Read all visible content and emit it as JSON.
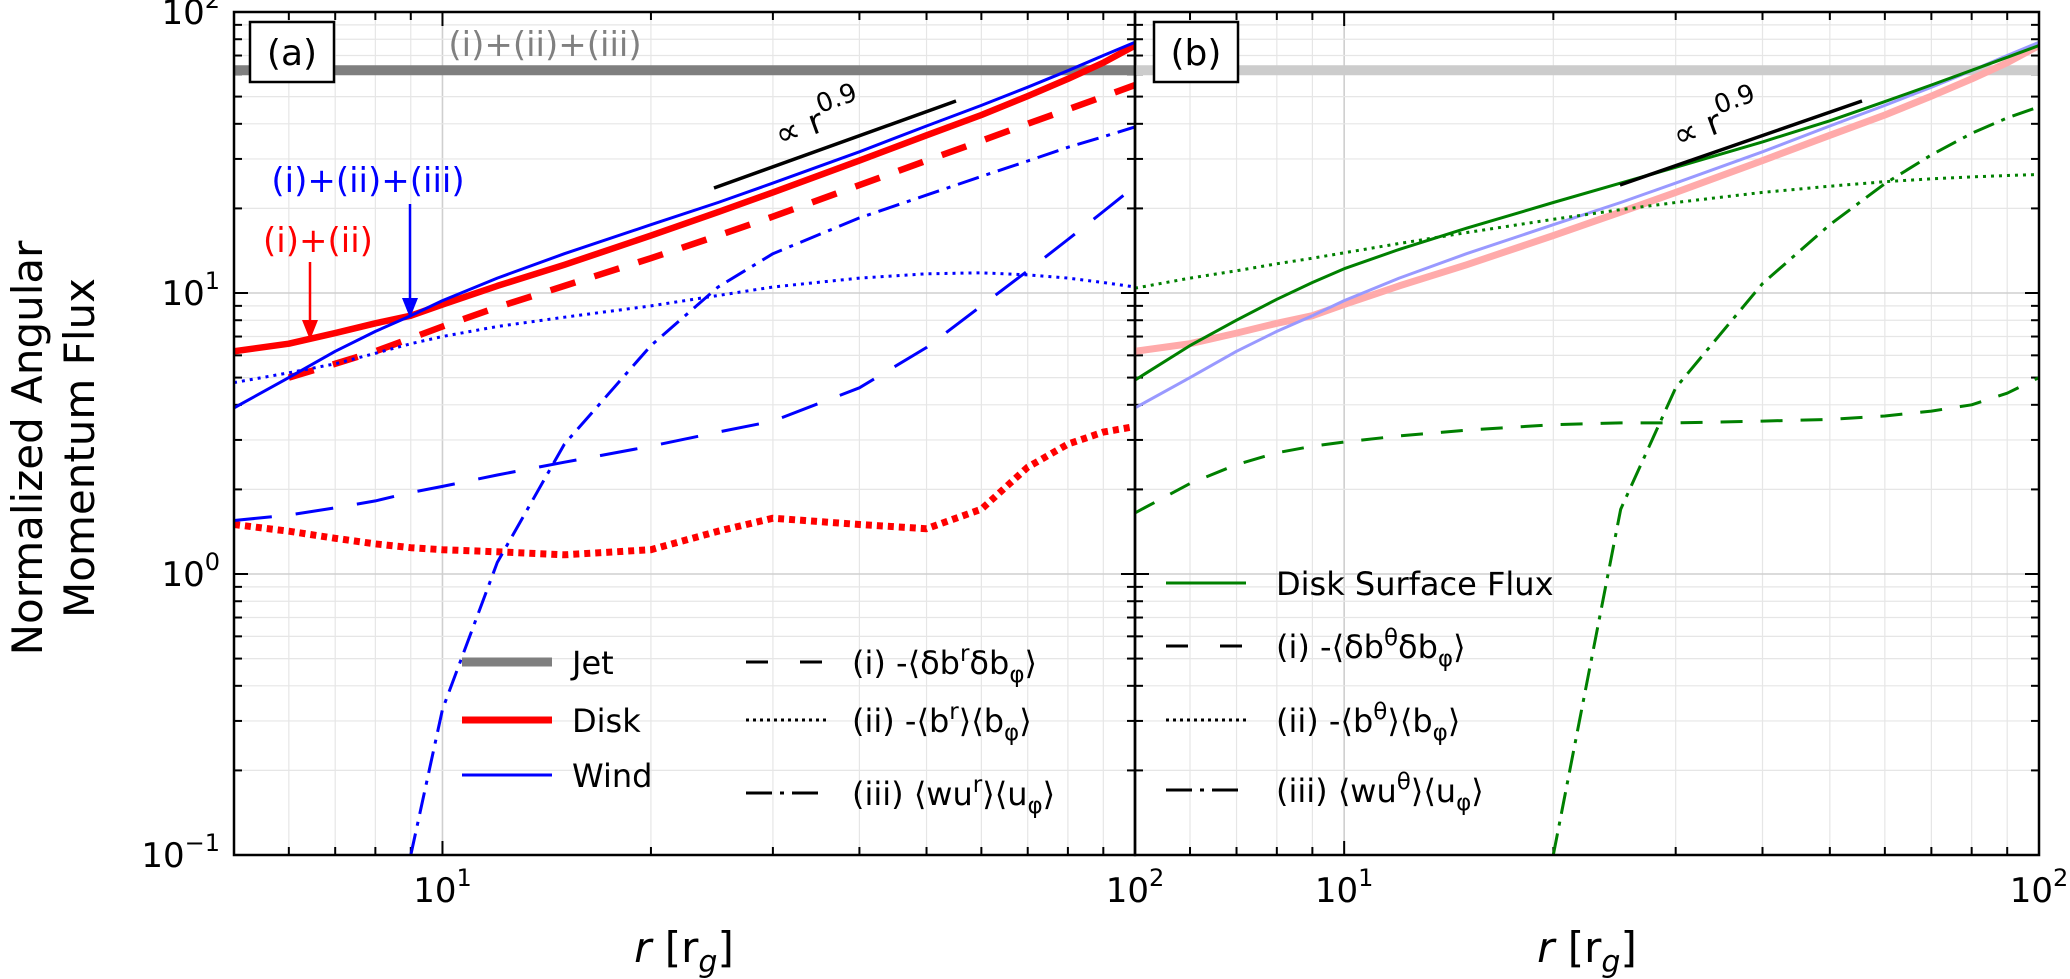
{
  "figure": {
    "ylabel_line1": "Normalized Angular",
    "ylabel_line2": "Momentum Flux",
    "xlabel_var": "r",
    "xlabel_unit": "[r",
    "xlabel_sub": "g",
    "xlabel_close": "]"
  },
  "chart_data": [
    {
      "type": "line",
      "panel_label": "(a)",
      "xscale": "log",
      "yscale": "log",
      "xlim": [
        5,
        100
      ],
      "ylim": [
        0.1,
        100
      ],
      "x_major_ticks": [
        {
          "base": "10",
          "exp": "1"
        },
        {
          "base": "10",
          "exp": "2"
        }
      ],
      "y_major_ticks": [
        {
          "base": "10",
          "exp": "−1"
        },
        {
          "base": "10",
          "exp": "0"
        },
        {
          "base": "10",
          "exp": "1"
        },
        {
          "base": "10",
          "exp": "2"
        }
      ],
      "grid": true,
      "colors": {
        "jet": "#7f7f7f",
        "disk": "#ff0000",
        "wind": "#0000ff"
      },
      "x": [
        5,
        6,
        7,
        8,
        9,
        10,
        12,
        15,
        20,
        25,
        30,
        40,
        50,
        60,
        70,
        80,
        90,
        100
      ],
      "series": [
        {
          "name": "Jet (i)+(ii)+(iii)",
          "component": "Jet",
          "style": "solid",
          "y": [
            62,
            62,
            62,
            62,
            62,
            62,
            62,
            62,
            62,
            62,
            62,
            62,
            62,
            62,
            62,
            62,
            62,
            62
          ]
        },
        {
          "name": "Disk (i)+(ii)",
          "component": "Disk",
          "style": "solid",
          "y": [
            6.2,
            6.6,
            7.2,
            7.8,
            8.3,
            9.1,
            10.6,
            12.6,
            16.0,
            19.4,
            22.8,
            29.6,
            36.4,
            43.0,
            50.2,
            57.8,
            66.0,
            76.0
          ]
        },
        {
          "name": "Disk (i)",
          "component": "Disk",
          "style": "dashed",
          "y": [
            null,
            5.0,
            5.6,
            6.2,
            6.9,
            7.6,
            8.9,
            10.6,
            13.3,
            16.0,
            18.7,
            24.2,
            29.6,
            34.8,
            40.0,
            45.0,
            50.0,
            55.0
          ]
        },
        {
          "name": "Disk (ii)",
          "component": "Disk",
          "style": "dotted",
          "y": [
            1.5,
            1.42,
            1.34,
            1.28,
            1.24,
            1.22,
            1.2,
            1.17,
            1.22,
            1.42,
            1.58,
            1.5,
            1.45,
            1.7,
            2.4,
            2.9,
            3.2,
            3.35
          ]
        },
        {
          "name": "Wind (i)+(ii)+(iii)",
          "component": "Wind",
          "style": "solid",
          "y": [
            3.9,
            5.0,
            6.2,
            7.3,
            8.3,
            9.4,
            11.3,
            13.8,
            17.5,
            21.0,
            24.6,
            31.8,
            39.3,
            46.5,
            54.0,
            61.8,
            70.0,
            78.0
          ]
        },
        {
          "name": "Wind (i)",
          "component": "Wind",
          "style": "dashed",
          "y": [
            1.55,
            1.62,
            1.72,
            1.82,
            1.95,
            2.05,
            2.25,
            2.5,
            2.85,
            3.2,
            3.5,
            4.6,
            6.4,
            9.0,
            12.0,
            15.5,
            19.5,
            24.0
          ]
        },
        {
          "name": "Wind (ii)",
          "component": "Wind",
          "style": "dotted",
          "y": [
            4.8,
            5.2,
            5.6,
            6.1,
            6.6,
            7.0,
            7.6,
            8.2,
            9.0,
            9.8,
            10.5,
            11.3,
            11.7,
            11.8,
            11.6,
            11.3,
            10.9,
            10.5
          ]
        },
        {
          "name": "Wind (iii)",
          "component": "Wind",
          "style": "dashdot",
          "y": [
            null,
            null,
            null,
            null,
            0.1,
            0.33,
            1.1,
            2.9,
            6.5,
            10.5,
            13.8,
            18.5,
            22.3,
            26.0,
            29.5,
            33.0,
            36.0,
            39.0
          ]
        }
      ],
      "legend_items": [
        {
          "label": "Jet",
          "style": "solid",
          "color": "#7f7f7f"
        },
        {
          "label": "Disk",
          "style": "solid",
          "color": "#ff0000"
        },
        {
          "label": "Wind",
          "style": "solid",
          "color": "#0000ff"
        }
      ],
      "legend_components": [
        {
          "label": "(i) -⟨δb",
          "sup": "r",
          "mid": "δb",
          "sub": "φ",
          "end": "⟩",
          "style": "dashed"
        },
        {
          "label": "(ii) -⟨b",
          "sup": "r",
          "mid": "⟩⟨b",
          "sub": "φ",
          "end": "⟩",
          "style": "dotted"
        },
        {
          "label": "(iii) ⟨wu",
          "sup": "r",
          "mid": "⟩⟨u",
          "sub": "φ",
          "end": "⟩",
          "style": "dashdot"
        }
      ],
      "annotations": {
        "jet_sum": "(i)+(ii)+(iii)",
        "wind_sum": "(i)+(ii)+(iii)",
        "disk_sum": "(i)+(ii)",
        "slope_text": "∝ r",
        "slope_exp": "0.9",
        "slope_value": 0.9
      }
    },
    {
      "type": "line",
      "panel_label": "(b)",
      "xscale": "log",
      "yscale": "log",
      "xlim": [
        5,
        100
      ],
      "ylim": [
        0.1,
        100
      ],
      "x_major_ticks": [
        {
          "base": "10",
          "exp": "1"
        },
        {
          "base": "10",
          "exp": "2"
        }
      ],
      "grid": true,
      "colors": {
        "surface": "#008000",
        "jet_faded": "#cccccc",
        "disk_faded": "#ffaaaa",
        "wind_faded": "#9999ff"
      },
      "x": [
        5,
        6,
        7,
        8,
        9,
        10,
        12,
        15,
        20,
        25,
        30,
        40,
        50,
        60,
        70,
        80,
        90,
        100
      ],
      "series": [
        {
          "name": "Jet total (faded)",
          "style": "solid",
          "y": [
            62,
            62,
            62,
            62,
            62,
            62,
            62,
            62,
            62,
            62,
            62,
            62,
            62,
            62,
            62,
            62,
            62,
            62
          ]
        },
        {
          "name": "Disk total (faded)",
          "style": "solid",
          "y": [
            6.2,
            6.6,
            7.2,
            7.8,
            8.3,
            9.1,
            10.6,
            12.6,
            16.0,
            19.4,
            22.8,
            29.6,
            36.4,
            43.0,
            50.2,
            57.8,
            66.0,
            76.0
          ]
        },
        {
          "name": "Wind total (faded)",
          "style": "solid",
          "y": [
            3.9,
            5.0,
            6.2,
            7.3,
            8.3,
            9.4,
            11.3,
            13.8,
            17.5,
            21.0,
            24.6,
            31.8,
            39.3,
            46.5,
            54.0,
            61.8,
            70.0,
            78.0
          ]
        },
        {
          "name": "Disk Surface Flux",
          "style": "solid",
          "y": [
            4.9,
            6.5,
            8.0,
            9.5,
            10.9,
            12.2,
            14.3,
            17.0,
            21.0,
            24.6,
            28.0,
            34.5,
            41.0,
            48.0,
            55.0,
            62.0,
            69.0,
            76.0
          ]
        },
        {
          "name": "Disk Surface (i)",
          "style": "dashed",
          "y": [
            1.65,
            2.1,
            2.45,
            2.7,
            2.85,
            2.95,
            3.1,
            3.25,
            3.4,
            3.45,
            3.45,
            3.5,
            3.55,
            3.65,
            3.8,
            4.0,
            4.4,
            5.0
          ]
        },
        {
          "name": "Disk Surface (ii)",
          "style": "dotted",
          "y": [
            10.4,
            11.3,
            12.0,
            12.7,
            13.3,
            13.9,
            15.0,
            16.4,
            18.3,
            19.8,
            21.0,
            22.8,
            24.0,
            24.9,
            25.5,
            25.9,
            26.2,
            26.4
          ]
        },
        {
          "name": "Disk Surface (iii)",
          "style": "dashdot",
          "y": [
            null,
            null,
            null,
            null,
            null,
            null,
            null,
            null,
            0.1,
            1.7,
            4.6,
            10.8,
            17.5,
            24.5,
            31.0,
            37.0,
            42.0,
            46.0
          ]
        }
      ],
      "legend_items": [
        {
          "label": "Disk Surface Flux",
          "style": "solid",
          "color": "#008000"
        }
      ],
      "legend_components": [
        {
          "label": "(i) -⟨δb",
          "sup": "θ",
          "mid": "δb",
          "sub": "φ",
          "end": "⟩",
          "style": "dashed"
        },
        {
          "label": "(ii) -⟨b",
          "sup": "θ",
          "mid": "⟩⟨b",
          "sub": "φ",
          "end": "⟩",
          "style": "dotted"
        },
        {
          "label": "(iii) ⟨wu",
          "sup": "θ",
          "mid": "⟩⟨u",
          "sub": "φ",
          "end": "⟩",
          "style": "dashdot"
        }
      ],
      "annotations": {
        "slope_text": "∝ r",
        "slope_exp": "0.9",
        "slope_value": 0.9
      }
    }
  ]
}
